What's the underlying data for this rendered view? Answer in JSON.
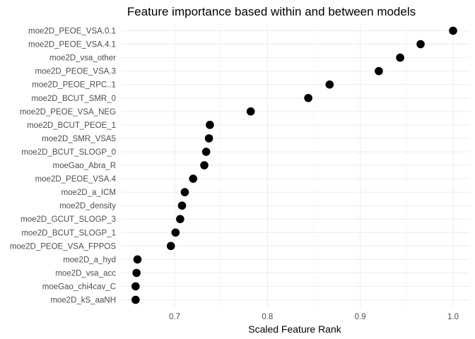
{
  "chart_data": {
    "type": "scatter",
    "title": "Feature importance based within and between models",
    "xlabel": "Scaled Feature Rank",
    "ylabel": "",
    "xlim": [
      0.65,
      1.0
    ],
    "x_ticks": [
      0.7,
      0.8,
      0.9,
      1.0
    ],
    "x_tick_labels": [
      "0.7",
      "0.8",
      "0.9",
      "1.0"
    ],
    "grid": true,
    "legend": "none",
    "point_color": "#000000",
    "categories": [
      "moe2D_PEOE_VSA.0.1",
      "moe2D_PEOE_VSA.4.1",
      "moe2D_vsa_other",
      "moe2D_PEOE_VSA.3",
      "moe2D_PEOE_RPC..1",
      "moe2D_BCUT_SMR_0",
      "moe2D_PEOE_VSA_NEG",
      "moe2D_BCUT_PEOE_1",
      "moe2D_SMR_VSA5",
      "moe2D_BCUT_SLOGP_0",
      "moeGao_Abra_R",
      "moe2D_PEOE_VSA.4",
      "moe2D_a_ICM",
      "moe2D_density",
      "moe2D_GCUT_SLOGP_3",
      "moe2D_BCUT_SLOGP_1",
      "moe2D_PEOE_VSA_FPPOS",
      "moe2D_a_hyd",
      "moe2D_vsa_acc",
      "moeGao_chi4cav_C",
      "moe2D_kS_aaNH"
    ],
    "values": [
      1.0,
      0.965,
      0.943,
      0.92,
      0.867,
      0.844,
      0.782,
      0.738,
      0.737,
      0.734,
      0.732,
      0.72,
      0.711,
      0.708,
      0.706,
      0.701,
      0.696,
      0.66,
      0.659,
      0.658,
      0.658
    ]
  }
}
